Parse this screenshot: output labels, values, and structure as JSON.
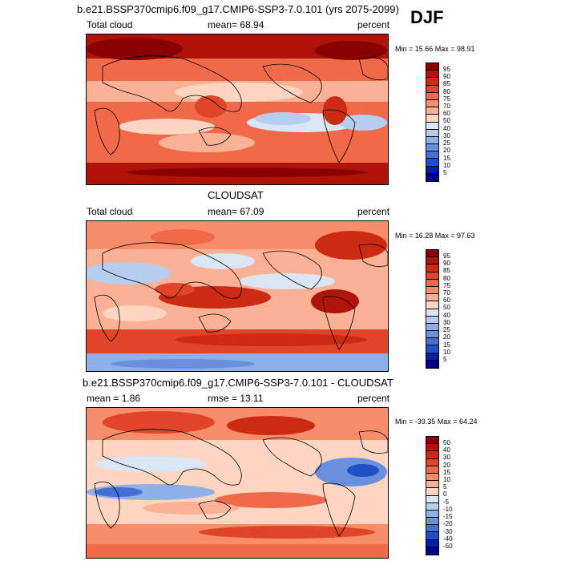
{
  "header": {
    "title": "b.e21.BSSP370cmip6.f09_g17.CMIP6-SSP3-7.0.101 (yrs 2075-2099)",
    "season": "DJF"
  },
  "panels": [
    {
      "title": "",
      "left_label": "Total cloud",
      "center_label": "mean=  68.94",
      "right_label": "percent",
      "minmax": "Min =  15.66  Max =  98.91",
      "colorbar_labels": [
        "95",
        "90",
        "85",
        "80",
        "75",
        "70",
        "60",
        "50",
        "40",
        "30",
        "25",
        "20",
        "15",
        "10",
        "5"
      ]
    },
    {
      "title": "CLOUDSAT",
      "left_label": "Total cloud",
      "center_label": "mean=  67.09",
      "right_label": "percent",
      "minmax": "Min =  16.28  Max =  97.63",
      "colorbar_labels": [
        "95",
        "90",
        "85",
        "80",
        "75",
        "70",
        "60",
        "50",
        "40",
        "30",
        "25",
        "20",
        "15",
        "10",
        "5"
      ]
    },
    {
      "title": "b.e21.BSSP370cmip6.f09_g17.CMIP6-SSP3-7.0.101 - CLOUDSAT",
      "left_label": "mean =   1.86",
      "center_label": "rmse =  13.11",
      "right_label": "percent",
      "minmax": "Min = -39.35  Max =  64.24",
      "colorbar_labels": [
        "50",
        "40",
        "30",
        "20",
        "15",
        "10",
        "5",
        "0",
        "-5",
        "-10",
        "-15",
        "-20",
        "-30",
        "-40",
        "-50"
      ]
    }
  ],
  "colors": {
    "scale": [
      "#8b0000",
      "#b01408",
      "#cc2a12",
      "#e0452a",
      "#f06a4a",
      "#f88d6c",
      "#fbb195",
      "#fdd5c0",
      "#dbe6f4",
      "#b5cdee",
      "#8fb0e6",
      "#6990dd",
      "#4470d6",
      "#2050c8",
      "#0020a8",
      "#00008b"
    ]
  }
}
